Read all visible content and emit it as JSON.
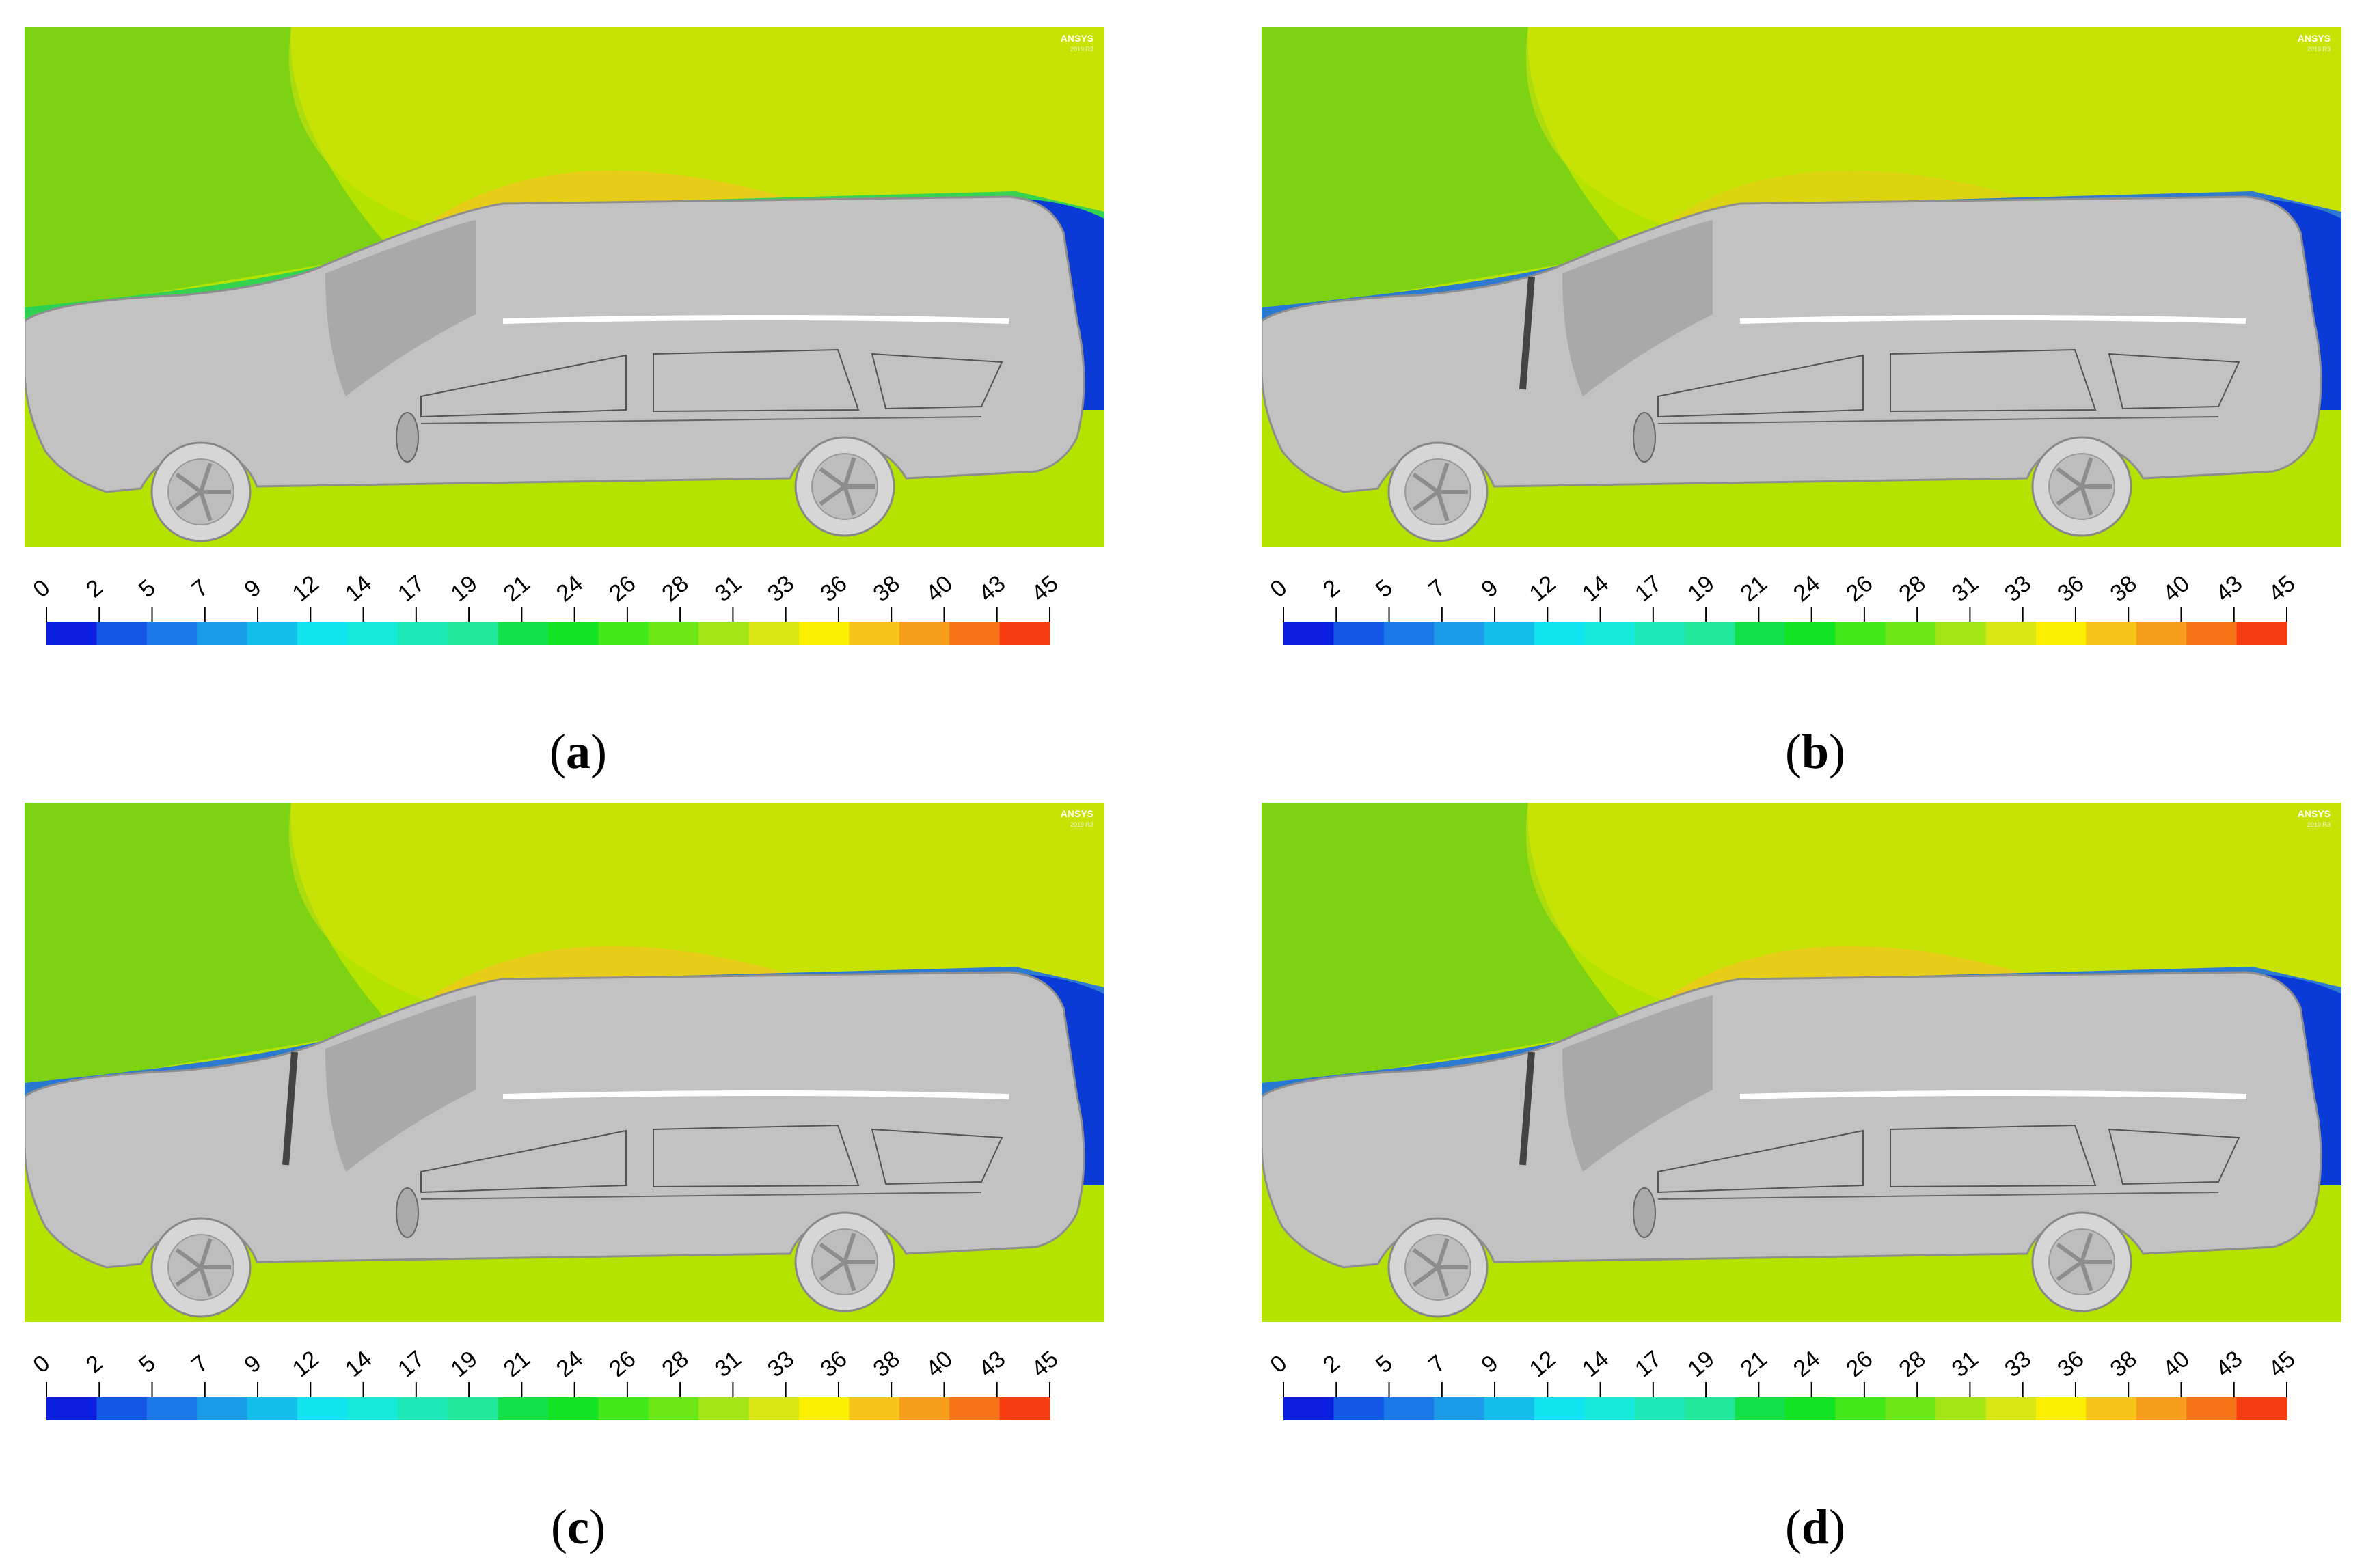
{
  "watermark": {
    "brand": "ANSYS",
    "sub": "2019 R3"
  },
  "colorbar": {
    "ticks": [
      "0",
      "2",
      "5",
      "7",
      "9",
      "12",
      "14",
      "17",
      "19",
      "21",
      "24",
      "26",
      "28",
      "31",
      "33",
      "36",
      "38",
      "40",
      "43",
      "45"
    ],
    "colors": [
      "#0b1ddf",
      "#1456e6",
      "#1c79ea",
      "#1a9ce8",
      "#14c0ea",
      "#11e4ef",
      "#15eada",
      "#1ce7b6",
      "#1fe89a",
      "#13e04a",
      "#12e424",
      "#42e818",
      "#6ee616",
      "#a4e516",
      "#d8e614",
      "#fbef02",
      "#f7c418",
      "#f79d1c",
      "#f77419",
      "#f53c10"
    ]
  },
  "panels": [
    {
      "id": "a",
      "label": "a"
    },
    {
      "id": "b",
      "label": "b"
    },
    {
      "id": "c",
      "label": "c"
    },
    {
      "id": "d",
      "label": "d"
    }
  ],
  "colors": {
    "field_base": "#b5e300",
    "field_front": "#7ed214",
    "field_yellow": "#d4e40a",
    "field_orange": "#f2c61e",
    "wake_blue": "#0a3bd6",
    "car_body": "#c2c2c2"
  }
}
